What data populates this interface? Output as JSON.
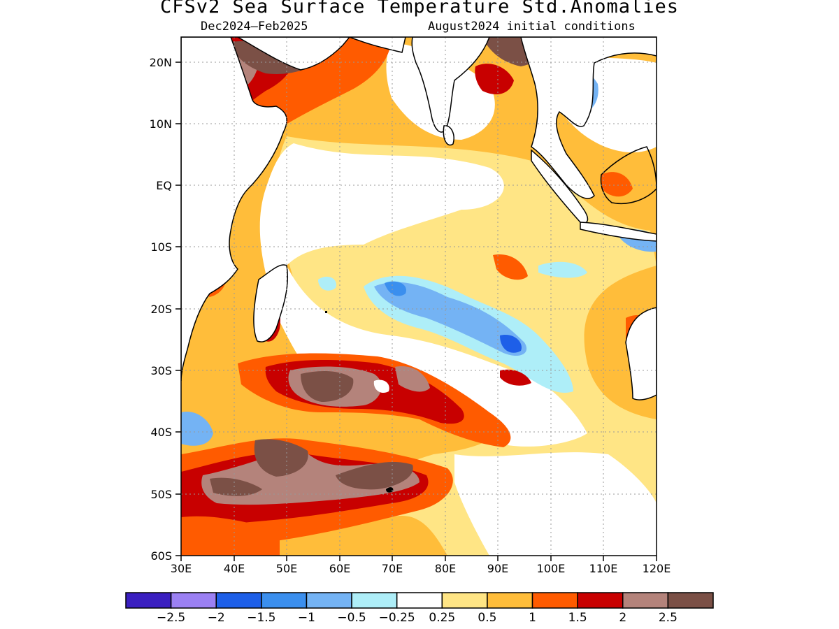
{
  "title": "CFSv2 Sea Surface Temperature Std.Anomalies",
  "subtitle_left": "Dec2024–Feb2025",
  "subtitle_right": "August2024 initial conditions",
  "map": {
    "region": "Indian Ocean",
    "lon_range": [
      30,
      120
    ],
    "lat_range": [
      -60,
      24
    ],
    "lat_labels": [
      "20N",
      "10N",
      "EQ",
      "10S",
      "20S",
      "30S",
      "40S",
      "50S",
      "60S"
    ],
    "lon_labels": [
      "30E",
      "40E",
      "50E",
      "60E",
      "70E",
      "80E",
      "90E",
      "100E",
      "110E",
      "120E"
    ],
    "land_color": "#ffffff",
    "grid": "dotted gray every 10 degrees"
  },
  "colorbar": {
    "colors": [
      "#3a1fc0",
      "#9b80f3",
      "#1e5fe8",
      "#3b8fee",
      "#74b3f4",
      "#aeeef8",
      "#ffffff",
      "#ffe585",
      "#ffbd3a",
      "#ff5b00",
      "#c80000",
      "#b4837b",
      "#7b5046"
    ],
    "labels": [
      "−2.5",
      "−2",
      "−1.5",
      "−1",
      "−0.5",
      "−0.25",
      "0.25",
      "0.5",
      "1",
      "1.5",
      "2",
      "2.5"
    ]
  }
}
